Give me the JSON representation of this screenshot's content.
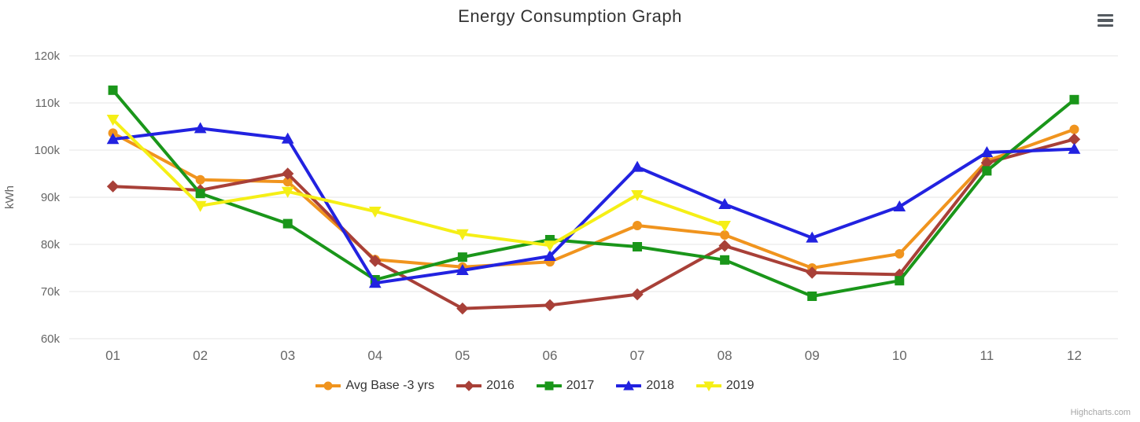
{
  "title": "Energy Consumption Graph",
  "credits": "Highcharts.com",
  "context_menu_tooltip": "Chart context menu",
  "chart_data": {
    "type": "line",
    "title": "Energy Consumption Graph",
    "xlabel": "",
    "ylabel": "kWh",
    "ylim": [
      60000,
      125000
    ],
    "grid": true,
    "legend_position": "bottom",
    "y_ticks": [
      {
        "value": 60000,
        "label": "60k"
      },
      {
        "value": 70000,
        "label": "70k"
      },
      {
        "value": 80000,
        "label": "80k"
      },
      {
        "value": 90000,
        "label": "90k"
      },
      {
        "value": 100000,
        "label": "100k"
      },
      {
        "value": 110000,
        "label": "110k"
      },
      {
        "value": 120000,
        "label": "120k"
      }
    ],
    "categories": [
      "01",
      "02",
      "03",
      "04",
      "05",
      "06",
      "07",
      "08",
      "09",
      "10",
      "11",
      "12"
    ],
    "series": [
      {
        "name": "Avg Base -3 yrs",
        "color": "#f0941e",
        "marker": "circle",
        "values": [
          103600,
          93700,
          93300,
          76800,
          75200,
          76300,
          84000,
          82000,
          75000,
          78000,
          97700,
          104400
        ]
      },
      {
        "name": "2016",
        "color": "#a84038",
        "marker": "diamond",
        "values": [
          92300,
          91500,
          95000,
          76500,
          66400,
          67100,
          69400,
          79700,
          74000,
          73600,
          97300,
          102300
        ]
      },
      {
        "name": "2017",
        "color": "#1a961a",
        "marker": "square",
        "values": [
          112700,
          90800,
          84400,
          72500,
          77300,
          81000,
          79500,
          76700,
          69000,
          72300,
          95600,
          110700
        ]
      },
      {
        "name": "2018",
        "color": "#2222e0",
        "marker": "triangle",
        "values": [
          102300,
          104600,
          102400,
          71800,
          74500,
          77500,
          96400,
          88500,
          81400,
          88000,
          99500,
          100200
        ]
      },
      {
        "name": "2019",
        "color": "#f5ef16",
        "marker": "triangle-down",
        "values": [
          106500,
          88200,
          91200,
          87000,
          82200,
          79800,
          90500,
          84000,
          null,
          null,
          null,
          null
        ]
      }
    ],
    "style": {
      "grid_color": "#e6e6e6",
      "tick_label_color": "#666666",
      "axis_title_color": "#666666",
      "line_width": 4
    }
  }
}
